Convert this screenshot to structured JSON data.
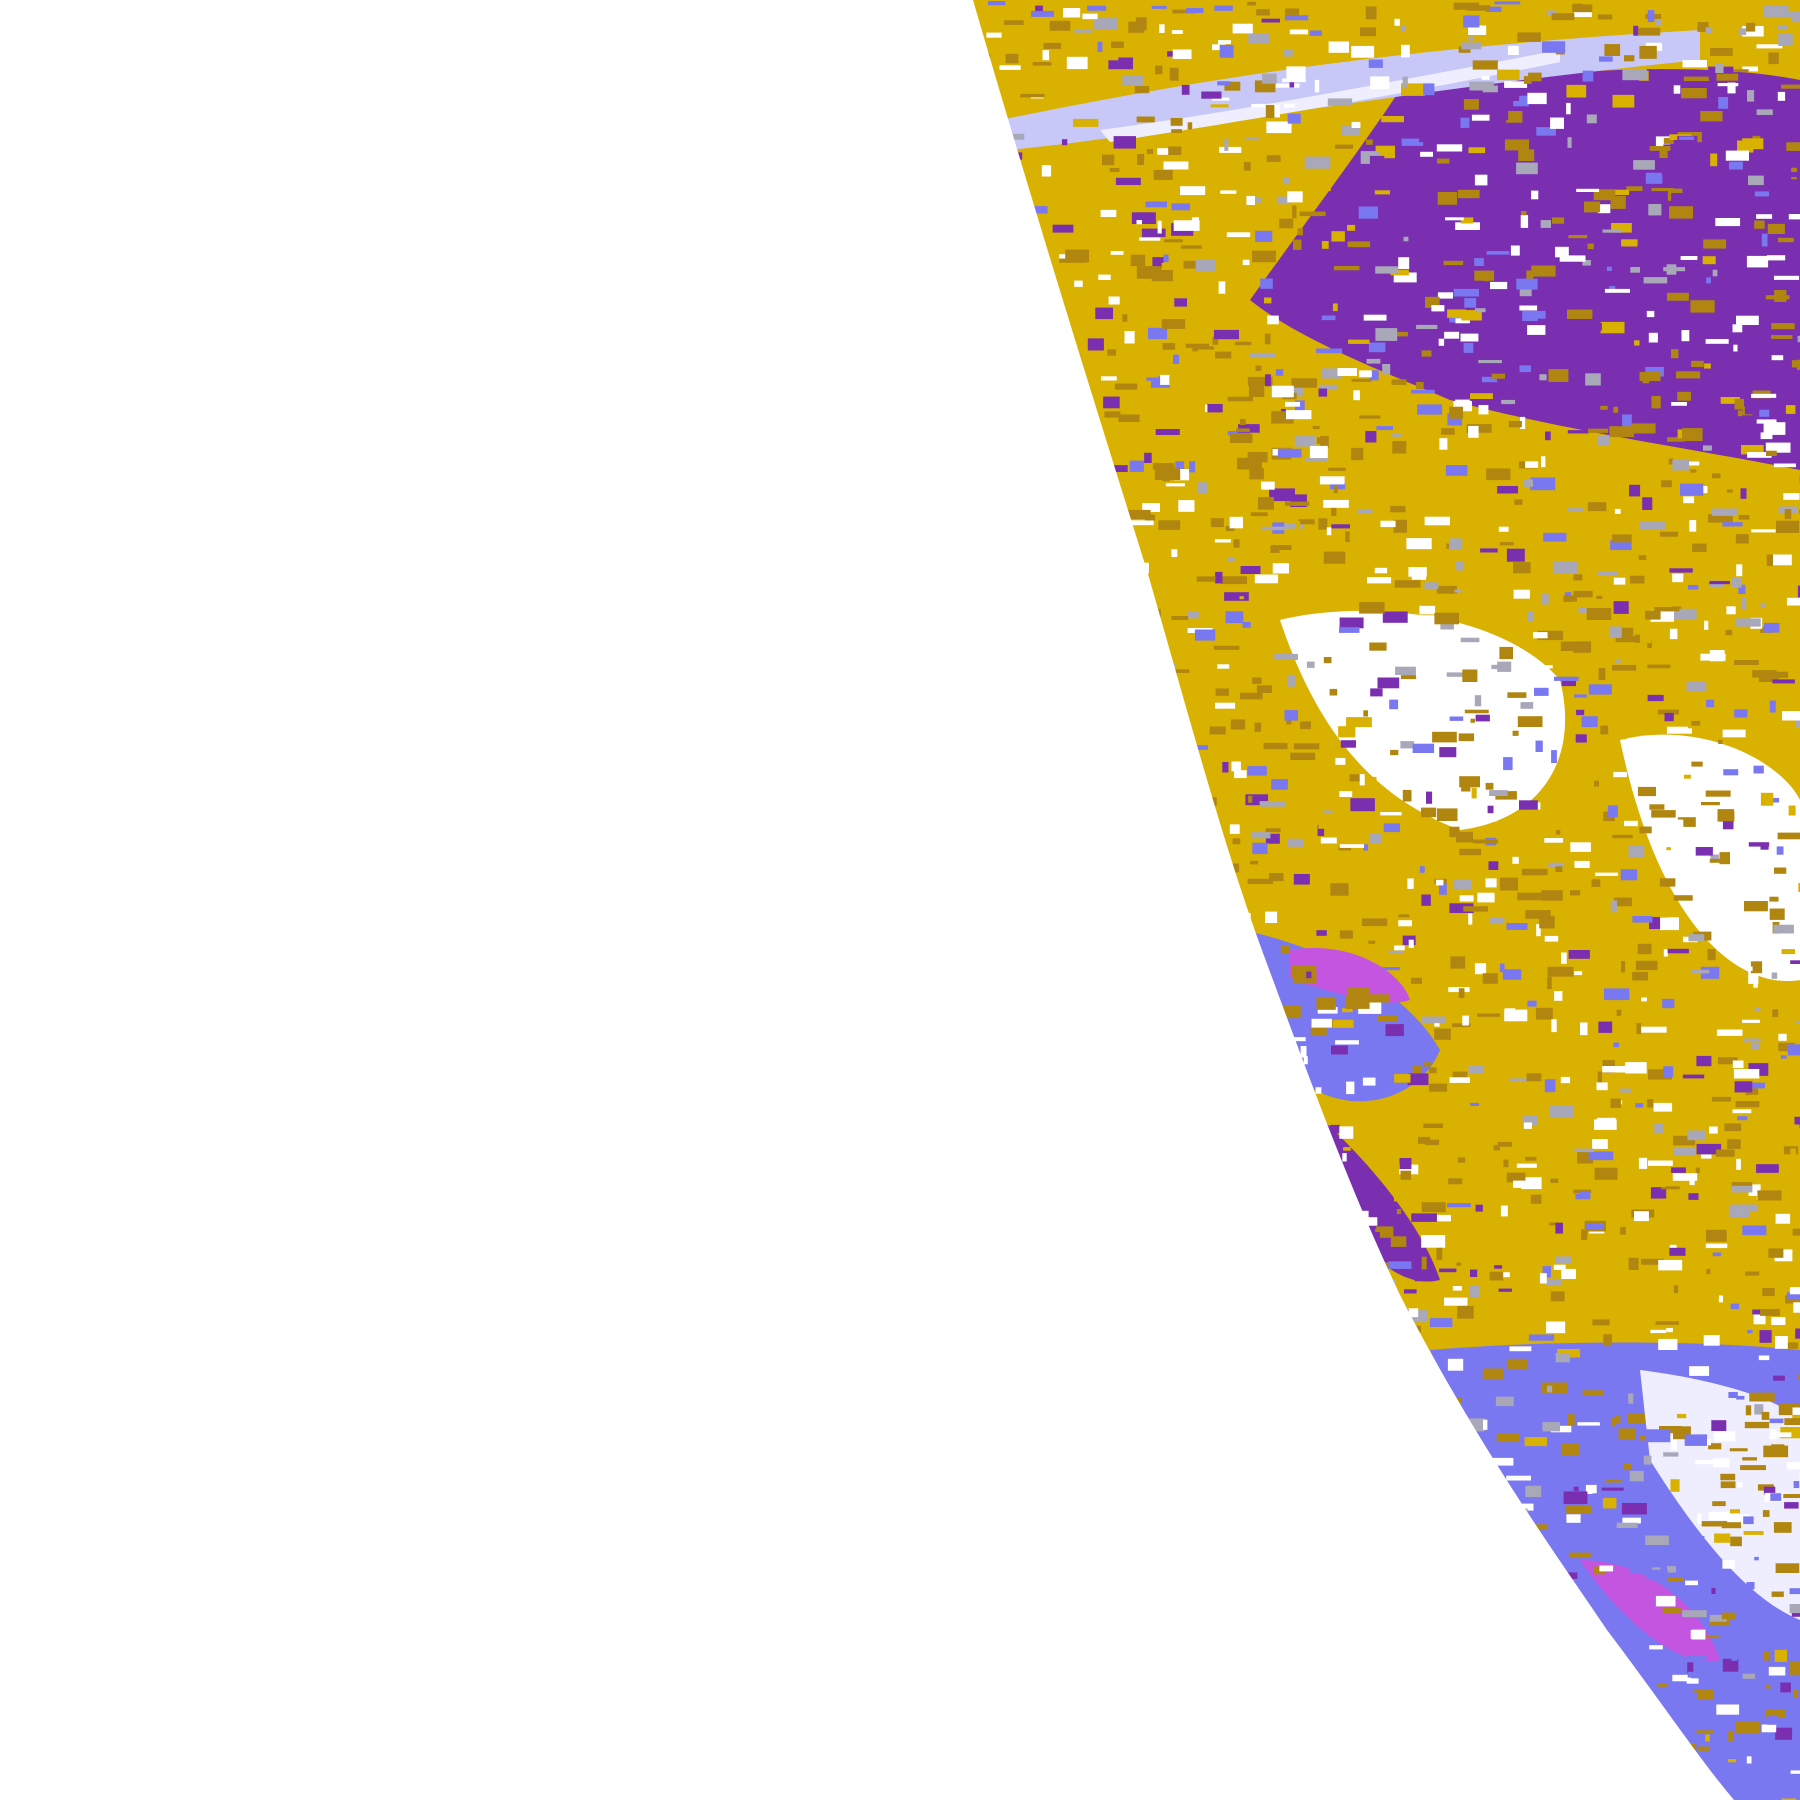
{
  "map": {
    "background": "#ffffff",
    "classes": [
      {
        "key": "gold",
        "color": "#d9b100"
      },
      {
        "key": "dark-gold",
        "color": "#b08610"
      },
      {
        "key": "purple",
        "color": "#7a2fb0"
      },
      {
        "key": "magenta",
        "color": "#c455e0"
      },
      {
        "key": "periwinkle",
        "color": "#7a78f0"
      },
      {
        "key": "lavender",
        "color": "#c8c8f8"
      },
      {
        "key": "pale",
        "color": "#eeeefe"
      },
      {
        "key": "grey",
        "color": "#a8a8b8"
      },
      {
        "key": "white",
        "color": "#ffffff"
      }
    ]
  }
}
